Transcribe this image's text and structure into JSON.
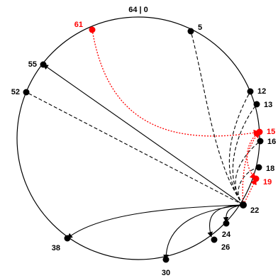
{
  "title": "64 | 0",
  "colors": {
    "normal": "#000000",
    "highlight": "#ff0000"
  },
  "nodes": [
    {
      "id": "n61",
      "label": "61",
      "highlight": true
    },
    {
      "id": "n5",
      "label": "5",
      "highlight": false
    },
    {
      "id": "n55",
      "label": "55",
      "highlight": false
    },
    {
      "id": "n52",
      "label": "52",
      "highlight": false
    },
    {
      "id": "n12",
      "label": "12",
      "highlight": false
    },
    {
      "id": "n13",
      "label": "13",
      "highlight": false
    },
    {
      "id": "n15",
      "label": "15",
      "highlight": true
    },
    {
      "id": "n16",
      "label": "16",
      "highlight": false
    },
    {
      "id": "n18",
      "label": "18",
      "highlight": false
    },
    {
      "id": "n19",
      "label": "19",
      "highlight": true
    },
    {
      "id": "n22",
      "label": "22",
      "highlight": false
    },
    {
      "id": "n24",
      "label": "24",
      "highlight": false
    },
    {
      "id": "n26",
      "label": "26",
      "highlight": false
    },
    {
      "id": "n30",
      "label": "30",
      "highlight": false
    },
    {
      "id": "n38",
      "label": "38",
      "highlight": false
    }
  ],
  "edges": [
    {
      "from": "n22",
      "to": "n55",
      "style": "solid"
    },
    {
      "from": "n22",
      "to": "n38",
      "style": "solid"
    },
    {
      "from": "n22",
      "to": "n30",
      "style": "solid"
    },
    {
      "from": "n22",
      "to": "n26",
      "style": "solid"
    },
    {
      "from": "n22",
      "to": "n24",
      "style": "solid"
    },
    {
      "from": "n22",
      "to": "n52",
      "style": "dashed"
    },
    {
      "from": "n22",
      "to": "n5",
      "style": "dashed"
    },
    {
      "from": "n22",
      "to": "n12",
      "style": "dashed"
    },
    {
      "from": "n22",
      "to": "n13",
      "style": "dashed"
    },
    {
      "from": "n22",
      "to": "n16",
      "style": "dashed"
    },
    {
      "from": "n22",
      "to": "n18",
      "style": "dashed"
    },
    {
      "from": "n61",
      "to": "n15",
      "style": "dotted"
    },
    {
      "from": "n22",
      "to": "n15",
      "style": "dotted"
    },
    {
      "from": "n15",
      "to": "n19",
      "style": "dotted"
    },
    {
      "from": "n22",
      "to": "n19",
      "style": "dotted"
    }
  ]
}
